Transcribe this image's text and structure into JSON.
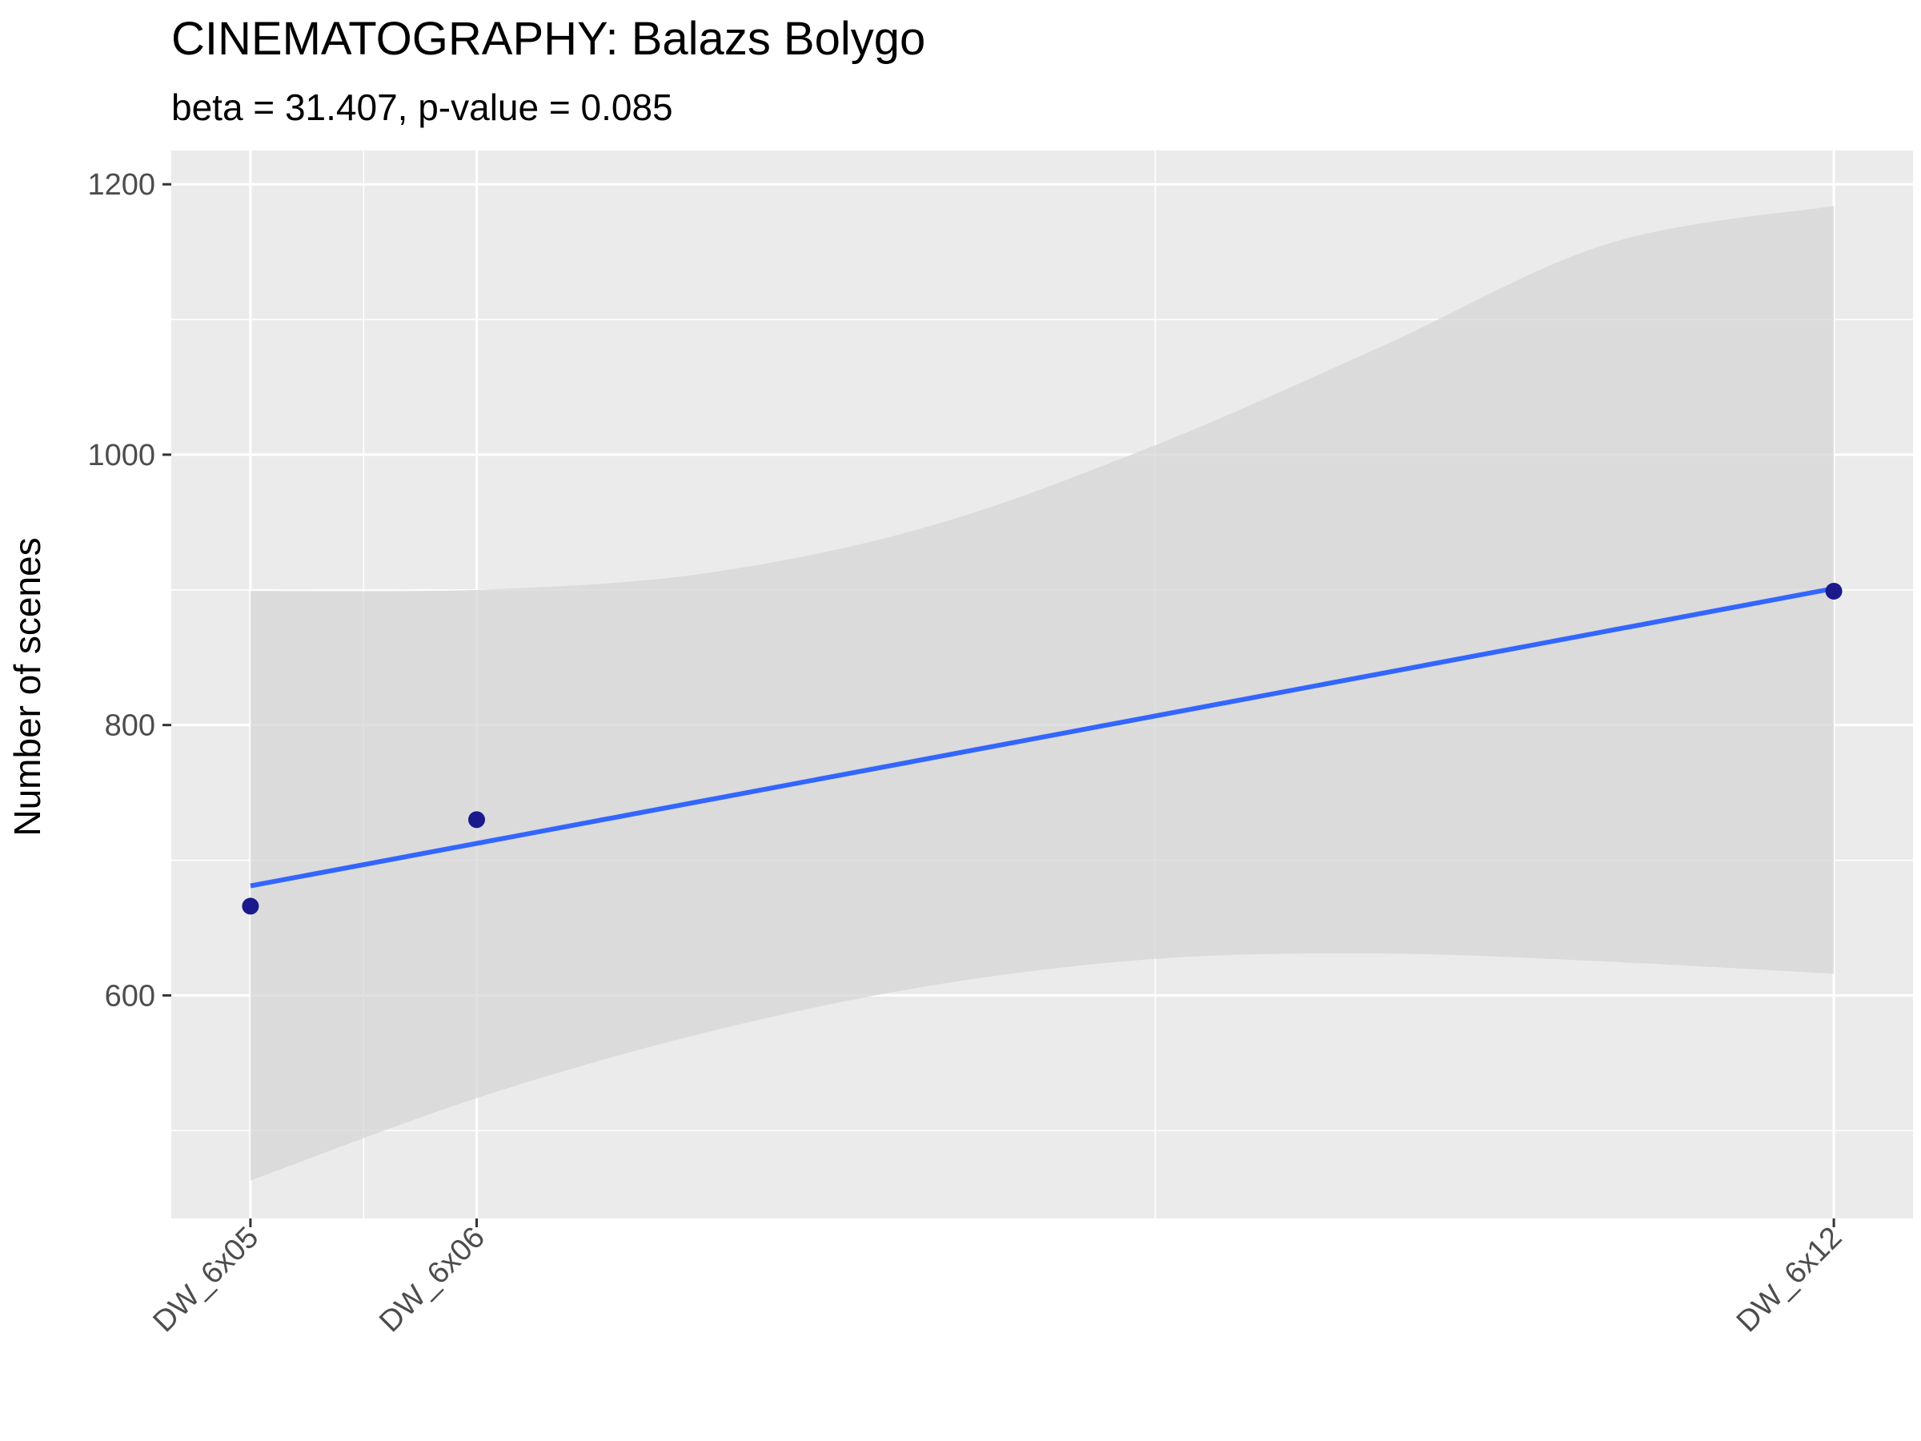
{
  "chart_data": {
    "type": "scatter",
    "title": "CINEMATOGRAPHY: Balazs Bolygo",
    "subtitle": "beta = 31.407, p-value = 0.085",
    "xlabel": "",
    "ylabel": "Number of scenes",
    "x_categories": [
      "DW_6x05",
      "DW_6x06",
      "DW_6x12"
    ],
    "x_positions": [
      5,
      6,
      12
    ],
    "xlim": [
      4.65,
      12.35
    ],
    "ylim": [
      435,
      1225
    ],
    "y_ticks": [
      600,
      800,
      1000,
      1200
    ],
    "grid": true,
    "series": [
      {
        "x": [
          5,
          6,
          12
        ],
        "y": [
          666,
          730,
          899
        ]
      }
    ],
    "fit_line": {
      "x": [
        5,
        12
      ],
      "y": [
        681,
        901
      ]
    },
    "confidence_band": {
      "x": [
        5,
        6,
        7,
        8,
        9,
        10,
        11,
        12
      ],
      "upper": [
        899,
        900,
        912,
        947,
        1007,
        1080,
        1156,
        1184
      ],
      "lower": [
        463,
        524,
        572,
        607,
        627,
        631,
        625,
        616
      ]
    },
    "colors": {
      "point": "#1a1a8c",
      "fit_line": "#3366ff",
      "band": "#d6d6d6",
      "panel": "#ebebeb",
      "grid": "#ffffff"
    }
  }
}
